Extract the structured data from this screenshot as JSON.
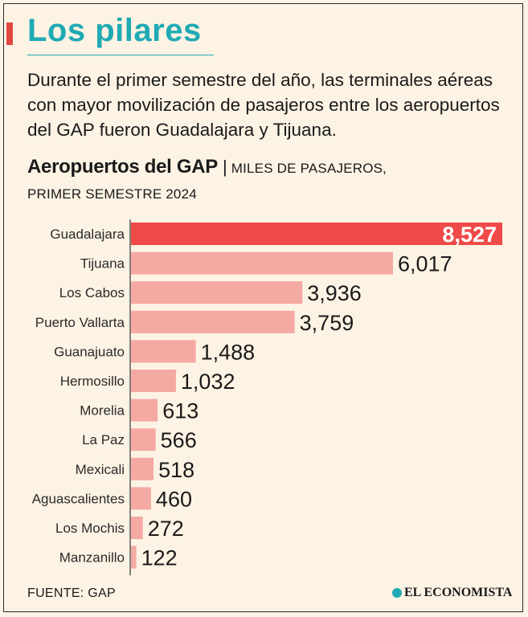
{
  "header": {
    "title": "Los pilares",
    "subtitle": "Durante el primer semestre del año, las terminales aéreas con mayor movilización de pasajeros entre los aeropuertos del GAP fueron Guadalajara y Tijuana."
  },
  "chart_heading": {
    "title": "Aeropuertos del GAP",
    "separator": "|",
    "units_line1": "Miles de pasajeros,",
    "units_line2": "primer semestre 2024"
  },
  "colors": {
    "highlight_bar": "#ef4a48",
    "bar": "#f4aaa2",
    "title": "#1faab4",
    "background": "#fdf3e4"
  },
  "chart_data": {
    "type": "bar",
    "orientation": "horizontal",
    "title": "Aeropuertos del GAP",
    "units": "Miles de pasajeros, primer semestre 2024",
    "categories": [
      "Guadalajara",
      "Tijuana",
      "Los Cabos",
      "Puerto Vallarta",
      "Guanajuato",
      "Hermosillo",
      "Morelia",
      "La Paz",
      "Mexicali",
      "Aguascalientes",
      "Los Mochis",
      "Manzanillo"
    ],
    "values": [
      8527,
      6017,
      3936,
      3759,
      1488,
      1032,
      613,
      566,
      518,
      460,
      272,
      122
    ],
    "value_labels": [
      "8,527",
      "6,017",
      "3,936",
      "3,759",
      "1,488",
      "1,032",
      "613",
      "566",
      "518",
      "460",
      "272",
      "122"
    ],
    "highlight_index": 0,
    "xlim": [
      0,
      8527
    ]
  },
  "footer": {
    "source": "FUENTE: GAP",
    "brand": "EL ECONOMISTA"
  }
}
